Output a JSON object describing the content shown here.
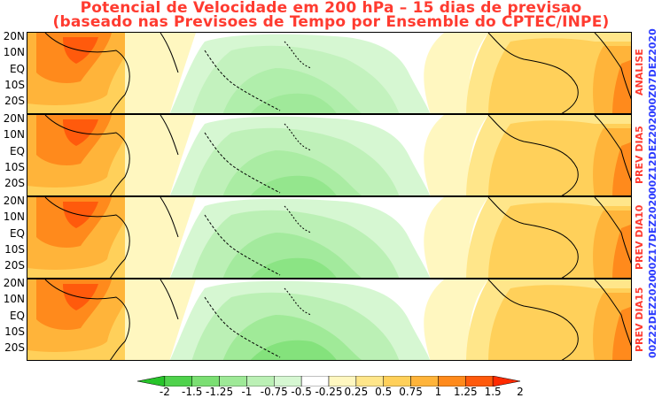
{
  "title": {
    "line1": "Potencial de Velocidade em 200 hPa – 15 dias de previsao",
    "line2": "(baseado nas Previsoes de Tempo por Ensemble do CPTEC/INPE)"
  },
  "lat_labels": [
    "20N",
    "10N",
    "EQ",
    "10S",
    "20S"
  ],
  "panels": [
    {
      "label": "ANALISE",
      "date": "00Z07DEZ2020"
    },
    {
      "label": "PREV DIA5",
      "date": "00Z12DEZ2020"
    },
    {
      "label": "PREV DIA10",
      "date": "00Z17DEZ2020"
    },
    {
      "label": "PREV DIA15",
      "date": "00Z22DEZ2020"
    }
  ],
  "colorbar": {
    "labels": [
      "-2",
      "-1.5",
      "-1.25",
      "-1",
      "-0.75",
      "-0.5",
      "-0.25",
      "0.25",
      "0.5",
      "0.75",
      "1",
      "1.25",
      "1.5",
      "2"
    ],
    "colors": [
      "#27c42a",
      "#4fd24c",
      "#7bdf73",
      "#9ee997",
      "#bbf0b5",
      "#d6f7d2",
      "#ffffff",
      "#fff7c0",
      "#ffe68a",
      "#ffd05a",
      "#ffb43a",
      "#ff8a1c",
      "#ff5a0c",
      "#ff2a00"
    ]
  }
}
